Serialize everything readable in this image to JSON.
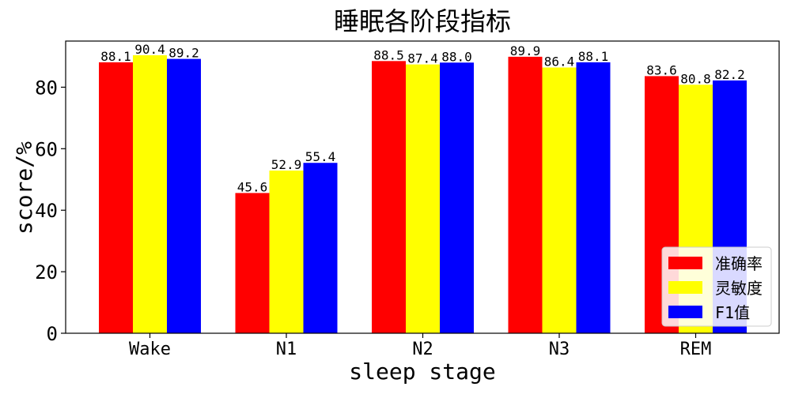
{
  "chart_data": {
    "type": "bar",
    "title": "睡眠各阶段指标",
    "xlabel": "sleep stage",
    "ylabel": "score/%",
    "categories": [
      "Wake",
      "N1",
      "N2",
      "N3",
      "REM"
    ],
    "series": [
      {
        "name": "准确率",
        "color": "#ff0000",
        "values": [
          88.1,
          45.6,
          88.5,
          89.9,
          83.6
        ]
      },
      {
        "name": "灵敏度",
        "color": "#ffff00",
        "values": [
          90.4,
          52.9,
          87.4,
          86.4,
          80.8
        ]
      },
      {
        "name": "F1值",
        "color": "#0000ff",
        "values": [
          89.2,
          55.4,
          88.0,
          88.1,
          82.2
        ]
      }
    ],
    "ylim": [
      0,
      95
    ],
    "yticks": [
      0,
      20,
      40,
      60,
      80
    ],
    "grid": false,
    "legend_position": "lower-right"
  }
}
